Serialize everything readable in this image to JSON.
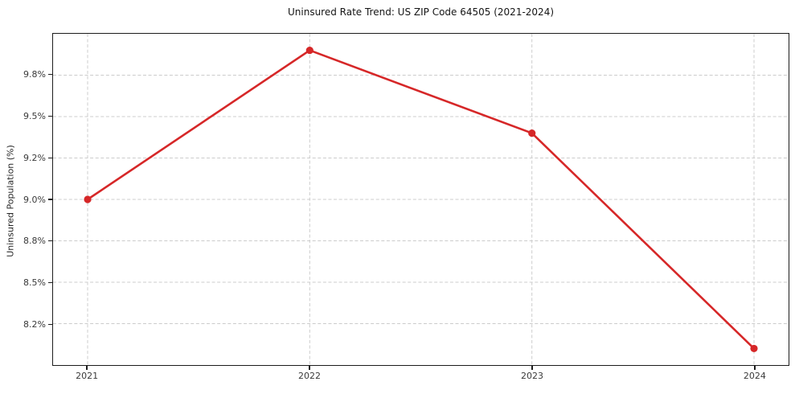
{
  "chart_data": {
    "type": "line",
    "title": "Uninsured Rate Trend: US ZIP Code 64505 (2021-2024)",
    "xlabel": "",
    "ylabel": "Uninsured Population (%)",
    "x": [
      "2021",
      "2022",
      "2023",
      "2024"
    ],
    "values": [
      9.0,
      9.9,
      9.4,
      8.1
    ],
    "value_labels": [
      "9.0%",
      "9.9%",
      "9.4%",
      "8.1%"
    ],
    "ylim": [
      8.0,
      10.0
    ],
    "ytick_values": [
      8.25,
      8.5,
      8.75,
      9.0,
      9.25,
      9.5,
      9.75
    ],
    "ytick_labels": [
      "8.2%",
      "8.5%",
      "8.8%",
      "9.0%",
      "9.2%",
      "9.5%",
      "9.8%"
    ],
    "xtick_labels": [
      "2021",
      "2022",
      "2023",
      "2024"
    ],
    "grid": true,
    "grid_style": "dashed",
    "legend": false,
    "line_color": "#d62728",
    "marker": "circle"
  }
}
